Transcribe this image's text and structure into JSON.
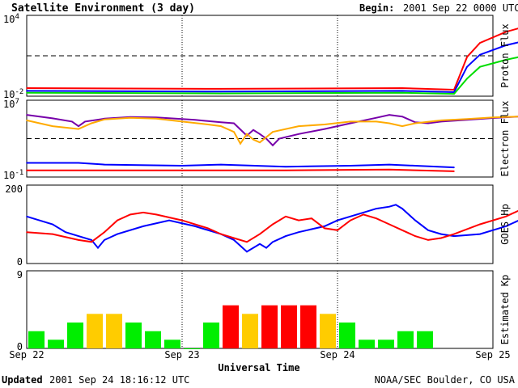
{
  "header": {
    "title": "Satellite Environment (3 day)",
    "begin_label": "Begin:",
    "begin_value": "2001 Sep 22 0000 UTC"
  },
  "footer": {
    "updated_label": "Updated",
    "updated_value": "2001 Sep 24 18:16:12 UTC",
    "credit": "NOAA/SEC Boulder, CO USA"
  },
  "x_axis": {
    "label": "Universal Time",
    "ticks": [
      "Sep 22",
      "Sep 23",
      "Sep 24",
      "Sep 25"
    ]
  },
  "chart_data": [
    {
      "type": "line",
      "name_label": "Proton Flux",
      "yscale": "log",
      "ylim": [
        0.01,
        10000
      ],
      "ytick_labels": [
        {
          "base": "10",
          "exp": "4"
        },
        {
          "base": "10",
          "exp": "-2"
        }
      ],
      "threshold": 10,
      "x_unit": "hours since 2001 Sep 22 0000 UTC",
      "series": [
        {
          "color": "#ff0000",
          "points": [
            [
              0,
              0.04
            ],
            [
              30,
              0.035
            ],
            [
              58,
              0.04
            ],
            [
              66,
              0.03
            ],
            [
              68,
              8
            ],
            [
              70,
              90
            ],
            [
              74,
              600
            ],
            [
              76,
              1100
            ],
            [
              78,
              1500
            ],
            [
              79,
              1300
            ]
          ]
        },
        {
          "color": "#0000ff",
          "points": [
            [
              0,
              0.025
            ],
            [
              30,
              0.022
            ],
            [
              58,
              0.025
            ],
            [
              66,
              0.02
            ],
            [
              68,
              1.5
            ],
            [
              70,
              12
            ],
            [
              74,
              60
            ],
            [
              76,
              100
            ],
            [
              78,
              150
            ],
            [
              79,
              160
            ]
          ]
        },
        {
          "color": "#00dd00",
          "points": [
            [
              0,
              0.018
            ],
            [
              30,
              0.016
            ],
            [
              58,
              0.018
            ],
            [
              66,
              0.015
            ],
            [
              68,
              0.2
            ],
            [
              70,
              1.5
            ],
            [
              74,
              5
            ],
            [
              76,
              8
            ],
            [
              78,
              13
            ],
            [
              79,
              14
            ]
          ]
        }
      ]
    },
    {
      "type": "line",
      "name_label": "Electron Flux",
      "yscale": "log",
      "ylim": [
        0.1,
        10000000
      ],
      "ytick_labels": [
        {
          "base": "10",
          "exp": "7"
        },
        {
          "base": "10",
          "exp": "-1"
        }
      ],
      "threshold": 1000,
      "series": [
        {
          "color": "#7700aa",
          "points": [
            [
              0,
              300000
            ],
            [
              4,
              130000
            ],
            [
              7,
              60000
            ],
            [
              8,
              20000
            ],
            [
              9,
              60000
            ],
            [
              12,
              120000
            ],
            [
              16,
              180000
            ],
            [
              20,
              160000
            ],
            [
              26,
              90000
            ],
            [
              30,
              50000
            ],
            [
              32,
              40000
            ],
            [
              34,
              2000
            ],
            [
              35,
              8000
            ],
            [
              36,
              3000
            ],
            [
              37,
              1000
            ],
            [
              38,
              200
            ],
            [
              39,
              1000
            ],
            [
              42,
              3000
            ],
            [
              46,
              10000
            ],
            [
              50,
              40000
            ],
            [
              54,
              150000
            ],
            [
              56,
              300000
            ],
            [
              58,
              200000
            ],
            [
              60,
              50000
            ],
            [
              62,
              40000
            ],
            [
              64,
              60000
            ],
            [
              68,
              90000
            ],
            [
              72,
              140000
            ],
            [
              76,
              200000
            ],
            [
              79,
              300000
            ]
          ]
        },
        {
          "color": "#ffaa00",
          "points": [
            [
              0,
              80000
            ],
            [
              4,
              20000
            ],
            [
              8,
              10000
            ],
            [
              10,
              40000
            ],
            [
              12,
              100000
            ],
            [
              16,
              150000
            ],
            [
              20,
              120000
            ],
            [
              24,
              60000
            ],
            [
              28,
              30000
            ],
            [
              30,
              20000
            ],
            [
              32,
              5000
            ],
            [
              33,
              300
            ],
            [
              34,
              3000
            ],
            [
              35,
              800
            ],
            [
              36,
              400
            ],
            [
              38,
              5000
            ],
            [
              42,
              20000
            ],
            [
              46,
              30000
            ],
            [
              50,
              60000
            ],
            [
              54,
              60000
            ],
            [
              56,
              40000
            ],
            [
              58,
              20000
            ],
            [
              60,
              40000
            ],
            [
              64,
              80000
            ],
            [
              68,
              110000
            ],
            [
              72,
              160000
            ],
            [
              76,
              200000
            ],
            [
              79,
              250000
            ]
          ]
        },
        {
          "color": "#0000ff",
          "points": [
            [
              0,
              3
            ],
            [
              8,
              3
            ],
            [
              12,
              2
            ],
            [
              24,
              1.5
            ],
            [
              30,
              2
            ],
            [
              40,
              1.2
            ],
            [
              50,
              1.5
            ],
            [
              56,
              2
            ],
            [
              60,
              1.5
            ],
            [
              66,
              1
            ]
          ]
        },
        {
          "color": "#ff0000",
          "points": [
            [
              0,
              0.5
            ],
            [
              20,
              0.5
            ],
            [
              40,
              0.5
            ],
            [
              56,
              0.6
            ],
            [
              66,
              0.4
            ]
          ]
        }
      ]
    },
    {
      "type": "line",
      "name_label": "GOES Hp",
      "ylim": [
        0,
        200
      ],
      "ytick_labels": [
        "200",
        "0"
      ],
      "series": [
        {
          "color": "#0000ff",
          "points": [
            [
              0,
              120
            ],
            [
              4,
              100
            ],
            [
              6,
              80
            ],
            [
              8,
              70
            ],
            [
              10,
              60
            ],
            [
              11,
              40
            ],
            [
              12,
              60
            ],
            [
              14,
              75
            ],
            [
              18,
              95
            ],
            [
              22,
              110
            ],
            [
              26,
              95
            ],
            [
              30,
              75
            ],
            [
              32,
              60
            ],
            [
              34,
              30
            ],
            [
              36,
              50
            ],
            [
              37,
              40
            ],
            [
              38,
              55
            ],
            [
              40,
              70
            ],
            [
              42,
              80
            ],
            [
              46,
              95
            ],
            [
              48,
              110
            ],
            [
              52,
              130
            ],
            [
              54,
              140
            ],
            [
              56,
              145
            ],
            [
              57,
              150
            ],
            [
              58,
              140
            ],
            [
              60,
              110
            ],
            [
              62,
              85
            ],
            [
              64,
              75
            ],
            [
              66,
              70
            ],
            [
              70,
              75
            ],
            [
              74,
              95
            ],
            [
              78,
              125
            ],
            [
              79,
              130
            ]
          ]
        },
        {
          "color": "#ff0000",
          "points": [
            [
              0,
              80
            ],
            [
              4,
              75
            ],
            [
              8,
              60
            ],
            [
              10,
              55
            ],
            [
              12,
              80
            ],
            [
              14,
              110
            ],
            [
              16,
              125
            ],
            [
              18,
              130
            ],
            [
              20,
              125
            ],
            [
              24,
              110
            ],
            [
              28,
              90
            ],
            [
              30,
              75
            ],
            [
              32,
              65
            ],
            [
              34,
              55
            ],
            [
              36,
              75
            ],
            [
              38,
              100
            ],
            [
              40,
              120
            ],
            [
              42,
              110
            ],
            [
              44,
              115
            ],
            [
              46,
              90
            ],
            [
              48,
              85
            ],
            [
              50,
              110
            ],
            [
              52,
              125
            ],
            [
              54,
              115
            ],
            [
              56,
              100
            ],
            [
              58,
              85
            ],
            [
              60,
              70
            ],
            [
              62,
              60
            ],
            [
              64,
              65
            ],
            [
              66,
              75
            ],
            [
              70,
              100
            ],
            [
              74,
              120
            ],
            [
              76,
              135
            ],
            [
              78,
              140
            ],
            [
              79,
              135
            ]
          ]
        }
      ]
    },
    {
      "type": "bar",
      "name_label": "Estimated Kp",
      "ylim": [
        0,
        9
      ],
      "ytick_labels": [
        "9",
        "0"
      ],
      "bar_hours": 3,
      "values": [
        2,
        1,
        3,
        4,
        4,
        3,
        2,
        1,
        0,
        3,
        5,
        4,
        5,
        5,
        5,
        4,
        3,
        1,
        1,
        2,
        2
      ],
      "colors": [
        "#00ee00",
        "#00ee00",
        "#00ee00",
        "#ffcc00",
        "#ffcc00",
        "#00ee00",
        "#00ee00",
        "#00ee00",
        "#00ee00",
        "#00ee00",
        "#ff0000",
        "#ffcc00",
        "#ff0000",
        "#ff0000",
        "#ff0000",
        "#ffcc00",
        "#00ee00",
        "#00ee00",
        "#00ee00",
        "#00ee00",
        "#00ee00"
      ]
    }
  ]
}
